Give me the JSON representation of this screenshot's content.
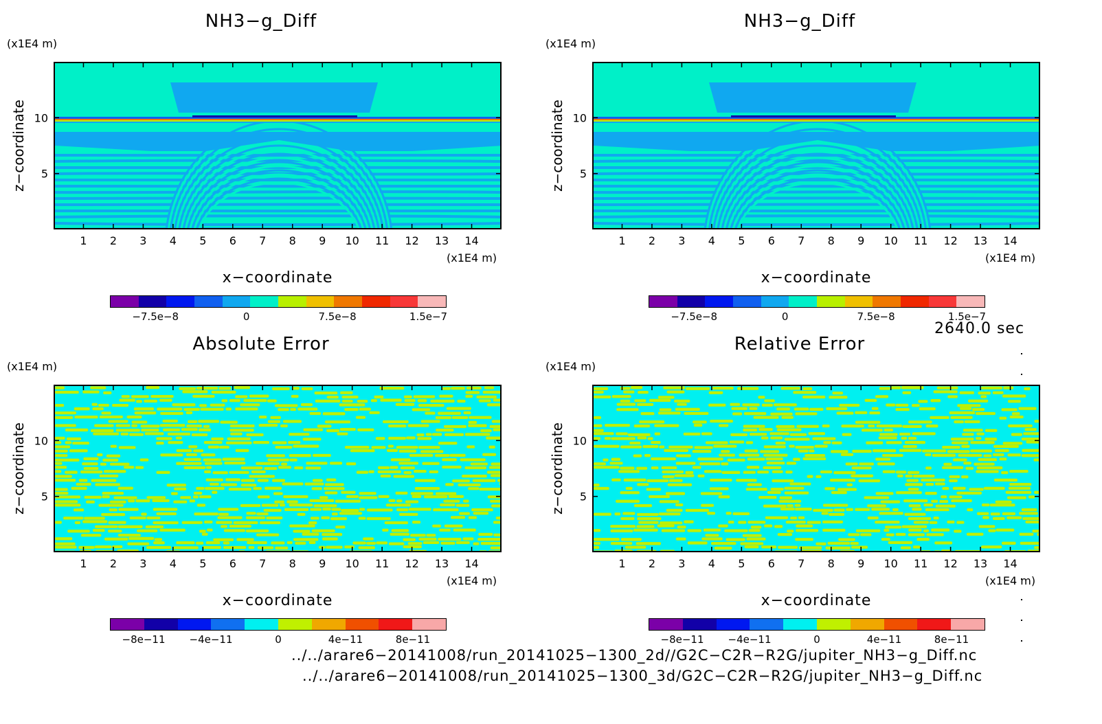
{
  "colors": {
    "top": [
      "#7b00a8",
      "#1200a8",
      "#0018f0",
      "#1060f0",
      "#10a8f0",
      "#00f0c8",
      "#b8f000",
      "#f0c000",
      "#f07800",
      "#f02800",
      "#f83838",
      "#f8b8b8"
    ],
    "bottom": [
      "#7b00a8",
      "#1200a8",
      "#0018f0",
      "#1070f0",
      "#00f0f0",
      "#c0f000",
      "#f0a800",
      "#f05000",
      "#f01818",
      "#f8a8a8"
    ]
  },
  "panels": [
    {
      "title": "NH3−g_Diff",
      "unit_top": "(x1E4 m)",
      "unit_bottom": "(x1E4 m)",
      "ylabel": "z−coordinate",
      "xlabel": "x−coordinate",
      "yticks": [
        "5",
        "10"
      ],
      "xticks": [
        "1",
        "2",
        "3",
        "4",
        "5",
        "6",
        "7",
        "8",
        "9",
        "10",
        "11",
        "12",
        "13",
        "14"
      ],
      "cbar_labels": [
        "−7.5e−8",
        "0",
        "7.5e−8",
        "1.5e−7"
      ]
    },
    {
      "title": "NH3−g_Diff",
      "unit_top": "(x1E4 m)",
      "unit_bottom": "(x1E4 m)",
      "ylabel": "z−coordinate",
      "xlabel": "x−coordinate",
      "yticks": [
        "5",
        "10"
      ],
      "xticks": [
        "1",
        "2",
        "3",
        "4",
        "5",
        "6",
        "7",
        "8",
        "9",
        "10",
        "11",
        "12",
        "13",
        "14"
      ],
      "cbar_labels": [
        "−7.5e−8",
        "0",
        "7.5e−8",
        "1.5e−7"
      ]
    },
    {
      "title": "Absolute Error",
      "unit_top": "(x1E4 m)",
      "unit_bottom": "(x1E4 m)",
      "ylabel": "z−coordinate",
      "xlabel": "x−coordinate",
      "yticks": [
        "5",
        "10"
      ],
      "xticks": [
        "1",
        "2",
        "3",
        "4",
        "5",
        "6",
        "7",
        "8",
        "9",
        "10",
        "11",
        "12",
        "13",
        "14"
      ],
      "cbar_labels": [
        "−8e−11",
        "−4e−11",
        "0",
        "4e−11",
        "8e−11"
      ]
    },
    {
      "title": "Relative Error",
      "unit_top": "(x1E4 m)",
      "unit_bottom": "(x1E4 m)",
      "ylabel": "z−coordinate",
      "xlabel": "x−coordinate",
      "yticks": [
        "5",
        "10"
      ],
      "xticks": [
        "1",
        "2",
        "3",
        "4",
        "5",
        "6",
        "7",
        "8",
        "9",
        "10",
        "11",
        "12",
        "13",
        "14"
      ],
      "cbar_labels": [
        "−8e−11",
        "−4e−11",
        "0",
        "4e−11",
        "8e−11"
      ]
    }
  ],
  "timestamp": "2640.0 sec",
  "footer": {
    "line1": "../../arare6−20141008/run_20141025−1300_2d//G2C−C2R−R2G/jupiter_NH3−g_Diff.nc",
    "line2": "../../arare6−20141008/run_20141025−1300_3d/G2C−C2R−R2G/jupiter_NH3−g_Diff.nc"
  },
  "chart_data": [
    {
      "type": "heatmap",
      "title": "NH3−g_Diff",
      "xlabel": "x−coordinate",
      "ylabel": "z−coordinate",
      "x_unit": "(x1E4 m)",
      "y_unit": "(x1E4 m)",
      "xlim": [
        0,
        15
      ],
      "ylim": [
        0,
        15
      ],
      "colorbar_ticks": [
        -7.5e-08,
        0,
        7.5e-08,
        1.5e-07
      ]
    },
    {
      "type": "heatmap",
      "title": "NH3−g_Diff",
      "xlabel": "x−coordinate",
      "ylabel": "z−coordinate",
      "x_unit": "(x1E4 m)",
      "y_unit": "(x1E4 m)",
      "xlim": [
        0,
        15
      ],
      "ylim": [
        0,
        15
      ],
      "colorbar_ticks": [
        -7.5e-08,
        0,
        7.5e-08,
        1.5e-07
      ]
    },
    {
      "type": "heatmap",
      "title": "Absolute Error",
      "xlabel": "x−coordinate",
      "ylabel": "z−coordinate",
      "x_unit": "(x1E4 m)",
      "y_unit": "(x1E4 m)",
      "xlim": [
        0,
        15
      ],
      "ylim": [
        0,
        15
      ],
      "colorbar_ticks": [
        -8e-11,
        -4e-11,
        0,
        4e-11,
        8e-11
      ]
    },
    {
      "type": "heatmap",
      "title": "Relative Error",
      "xlabel": "x−coordinate",
      "ylabel": "z−coordinate",
      "x_unit": "(x1E4 m)",
      "y_unit": "(x1E4 m)",
      "xlim": [
        0,
        15
      ],
      "ylim": [
        0,
        15
      ],
      "colorbar_ticks": [
        -8e-11,
        -4e-11,
        0,
        4e-11,
        8e-11
      ]
    }
  ]
}
